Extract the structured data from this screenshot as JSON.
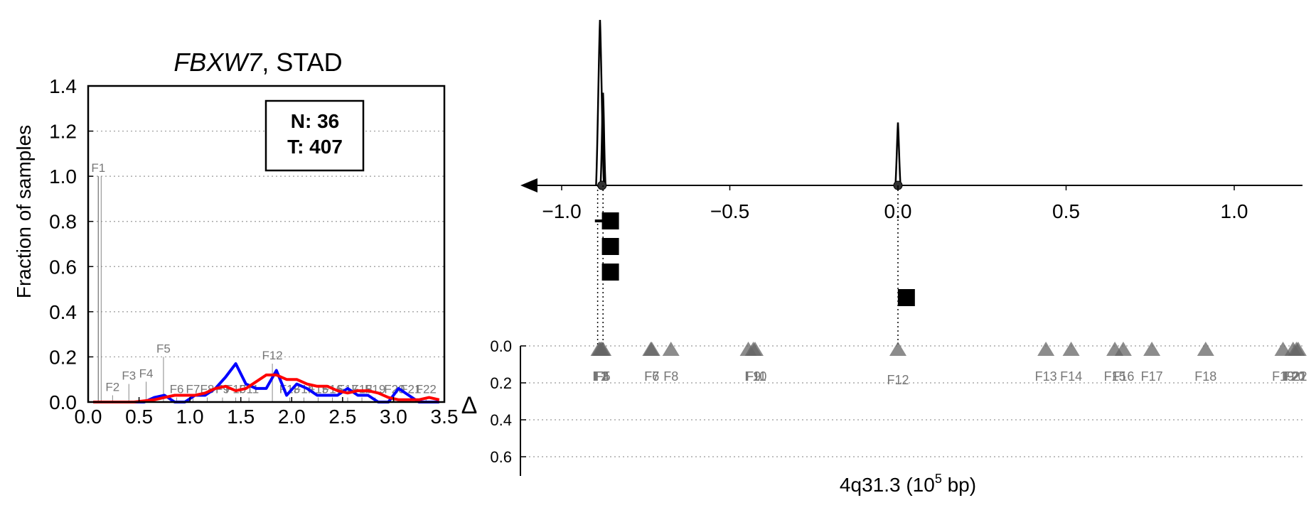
{
  "left_panel": {
    "title_gene": "FBXW7",
    "title_rest": ", STAD",
    "ylabel": "Fraction of samples",
    "legend_n": "N: 36",
    "legend_t": "T: 407",
    "x_ticks": [
      "0.0",
      "0.5",
      "1.0",
      "1.5",
      "2.0",
      "2.5",
      "3.0",
      "3.5"
    ],
    "y_ticks": [
      "0.0",
      "0.2",
      "0.4",
      "0.6",
      "0.8",
      "1.0",
      "1.2",
      "1.4"
    ]
  },
  "right_panel": {
    "xlabel_prefix": "4q31.3 (10",
    "xlabel_exp": "5",
    "xlabel_suffix": " bp)",
    "delta_label": "Δ",
    "top_x_ticks": [
      "−1.0",
      "−0.5",
      "0.0",
      "0.5",
      "1.0"
    ],
    "delta_ticks": [
      "0.0",
      "0.2",
      "0.4",
      "0.6"
    ]
  },
  "colors": {
    "normal": "#0000ff",
    "tumor": "#ff0000",
    "feature_gray": "#888888",
    "marker": "#000000"
  },
  "chart_data": [
    {
      "type": "line",
      "title": "FBXW7, STAD",
      "xlabel": "",
      "ylabel": "Fraction of samples",
      "xlim": [
        0.0,
        3.5
      ],
      "ylim": [
        0.0,
        1.4
      ],
      "grid": "horizontal dotted",
      "legend": "top-right box: N: 36, T: 407",
      "series": [
        {
          "name": "N",
          "color": "#0000ff",
          "x": [
            0.05,
            0.15,
            0.25,
            0.35,
            0.45,
            0.55,
            0.65,
            0.75,
            0.85,
            0.95,
            1.05,
            1.15,
            1.25,
            1.35,
            1.45,
            1.55,
            1.65,
            1.75,
            1.85,
            1.95,
            2.05,
            2.15,
            2.25,
            2.35,
            2.45,
            2.55,
            2.65,
            2.75,
            2.85,
            2.95,
            3.05,
            3.15,
            3.25,
            3.35,
            3.45
          ],
          "y": [
            0,
            0,
            0,
            0,
            0,
            0,
            0.02,
            0.03,
            0,
            0,
            0.03,
            0.03,
            0.06,
            0.11,
            0.17,
            0.08,
            0.06,
            0.06,
            0.14,
            0.03,
            0.08,
            0.06,
            0.03,
            0.03,
            0.03,
            0.06,
            0.03,
            0.03,
            0,
            0,
            0.06,
            0.03,
            0,
            0,
            0
          ]
        },
        {
          "name": "T",
          "color": "#ff0000",
          "x": [
            0.05,
            0.15,
            0.25,
            0.35,
            0.45,
            0.55,
            0.65,
            0.75,
            0.85,
            0.95,
            1.05,
            1.15,
            1.25,
            1.35,
            1.45,
            1.55,
            1.65,
            1.75,
            1.85,
            1.95,
            2.05,
            2.15,
            2.25,
            2.35,
            2.45,
            2.55,
            2.65,
            2.75,
            2.85,
            2.95,
            3.05,
            3.15,
            3.25,
            3.35,
            3.45
          ],
          "y": [
            0,
            0,
            0,
            0,
            0,
            0.005,
            0.01,
            0.02,
            0.03,
            0.03,
            0.03,
            0.04,
            0.06,
            0.07,
            0.05,
            0.06,
            0.09,
            0.12,
            0.12,
            0.1,
            0.1,
            0.08,
            0.07,
            0.07,
            0.05,
            0.04,
            0.05,
            0.05,
            0.04,
            0.02,
            0.01,
            0.01,
            0.01,
            0.02,
            0.01
          ]
        }
      ],
      "features": [
        {
          "label": "F1",
          "x": 0.1,
          "y": 1.0
        },
        {
          "label": "F2",
          "x": 0.24,
          "y": 0.03
        },
        {
          "label": "F3",
          "x": 0.4,
          "y": 0.08
        },
        {
          "label": "F4",
          "x": 0.57,
          "y": 0.09
        },
        {
          "label": "F5",
          "x": 0.74,
          "y": 0.2
        },
        {
          "label": "F6",
          "x": 0.87,
          "y": 0.02
        },
        {
          "label": "F7",
          "x": 1.03,
          "y": 0.02
        },
        {
          "label": "F8",
          "x": 1.17,
          "y": 0.02
        },
        {
          "label": "F9",
          "x": 1.32,
          "y": 0.02
        },
        {
          "label": "F10",
          "x": 1.45,
          "y": 0.02
        },
        {
          "label": "F11",
          "x": 1.58,
          "y": 0.02
        },
        {
          "label": "F12",
          "x": 1.81,
          "y": 0.17
        },
        {
          "label": "F13",
          "x": 1.98,
          "y": 0.02
        },
        {
          "label": "F14",
          "x": 2.12,
          "y": 0.02
        },
        {
          "label": "F15",
          "x": 2.26,
          "y": 0.02
        },
        {
          "label": "F16",
          "x": 2.4,
          "y": 0.02
        },
        {
          "label": "F17",
          "x": 2.55,
          "y": 0.02
        },
        {
          "label": "F18",
          "x": 2.69,
          "y": 0.02
        },
        {
          "label": "F19",
          "x": 2.82,
          "y": 0.02
        },
        {
          "label": "F20",
          "x": 3.01,
          "y": 0.02
        },
        {
          "label": "F21",
          "x": 3.17,
          "y": 0.02
        },
        {
          "label": "F22",
          "x": 3.32,
          "y": 0.02
        }
      ]
    },
    {
      "type": "line",
      "title": "",
      "xlabel": "4q31.3 (10^5 bp)",
      "xlim": [
        -1.05,
        1.33
      ],
      "x_ticks": [
        -1.0,
        -0.5,
        0.0,
        0.5,
        1.0
      ],
      "grid": "off",
      "arrow_direction": "left",
      "peaks": [
        {
          "x": -0.886,
          "height": 1.0,
          "width": 0.015
        },
        {
          "x": -0.877,
          "height": 0.56,
          "width": 0.004
        },
        {
          "x": 0.0,
          "height": 0.38,
          "width": 0.004
        }
      ],
      "anchor_points": [
        -0.88,
        0.0
      ],
      "square_markers": [
        {
          "x": -0.855,
          "level": 0.72
        },
        {
          "x": -0.855,
          "level": 0.6
        },
        {
          "x": -0.855,
          "level": 0.48
        },
        {
          "x": 0.025,
          "level": 0.36
        }
      ],
      "dash_marker": {
        "x": -0.88,
        "level": 0.72
      }
    },
    {
      "type": "scatter",
      "title": "",
      "ylabel": "Δ",
      "xlim": [
        -1.05,
        1.33
      ],
      "ylim": [
        0.0,
        0.7
      ],
      "y_ticks": [
        0.0,
        0.2,
        0.4,
        0.6
      ],
      "grid": "horizontal dotted",
      "points": [
        {
          "label": "F1",
          "x": -0.889,
          "y": 0.0
        },
        {
          "label": "F2",
          "x": -0.886,
          "y": 0.0
        },
        {
          "label": "F3",
          "x": -0.883,
          "y": 0.0
        },
        {
          "label": "F4",
          "x": -0.88,
          "y": 0.0
        },
        {
          "label": "F5",
          "x": -0.877,
          "y": 0.0
        },
        {
          "label": "F6",
          "x": -0.735,
          "y": 0.0
        },
        {
          "label": "F7",
          "x": -0.732,
          "y": 0.0
        },
        {
          "label": "F8",
          "x": -0.675,
          "y": 0.0
        },
        {
          "label": "F9",
          "x": -0.445,
          "y": 0.0
        },
        {
          "label": "F10",
          "x": -0.43,
          "y": 0.0
        },
        {
          "label": "F11",
          "x": -0.425,
          "y": 0.0
        },
        {
          "label": "F12",
          "x": 0.0,
          "y": 0.0
        },
        {
          "label": "F13",
          "x": 0.44,
          "y": 0.0
        },
        {
          "label": "F14",
          "x": 0.515,
          "y": 0.0
        },
        {
          "label": "F15",
          "x": 0.645,
          "y": 0.0
        },
        {
          "label": "F16",
          "x": 0.67,
          "y": 0.0
        },
        {
          "label": "F17",
          "x": 0.755,
          "y": 0.0
        },
        {
          "label": "F18",
          "x": 0.915,
          "y": 0.0
        },
        {
          "label": "F19",
          "x": 1.145,
          "y": 0.0
        },
        {
          "label": "F20",
          "x": 1.175,
          "y": 0.0
        },
        {
          "label": "F21",
          "x": 1.185,
          "y": 0.0
        },
        {
          "label": "F22",
          "x": 1.19,
          "y": 0.0
        }
      ],
      "point_labels": [
        {
          "text": "F1",
          "x": -0.886
        },
        {
          "text": "F2",
          "x": -0.884
        },
        {
          "text": "F3",
          "x": -0.882
        },
        {
          "text": "F4",
          "x": -0.88
        },
        {
          "text": "F5",
          "x": -0.877
        },
        {
          "text": "F6",
          "x": -0.732
        },
        {
          "text": "F7",
          "x": -0.732
        },
        {
          "text": "F8",
          "x": -0.675
        },
        {
          "text": "F9",
          "x": -0.43
        },
        {
          "text": "F10",
          "x": -0.423
        },
        {
          "text": "F11",
          "x": -0.423
        },
        {
          "text": "F12",
          "x": 0.0
        },
        {
          "text": "F13",
          "x": 0.44
        },
        {
          "text": "F14",
          "x": 0.515
        },
        {
          "text": "F15",
          "x": 0.645
        },
        {
          "text": "F16",
          "x": 0.67
        },
        {
          "text": "F17",
          "x": 0.755
        },
        {
          "text": "F18",
          "x": 0.915
        },
        {
          "text": "F19",
          "x": 1.145
        },
        {
          "text": "F20",
          "x": 1.178
        },
        {
          "text": "F21",
          "x": 1.181
        },
        {
          "text": "F22",
          "x": 1.184
        }
      ]
    }
  ]
}
